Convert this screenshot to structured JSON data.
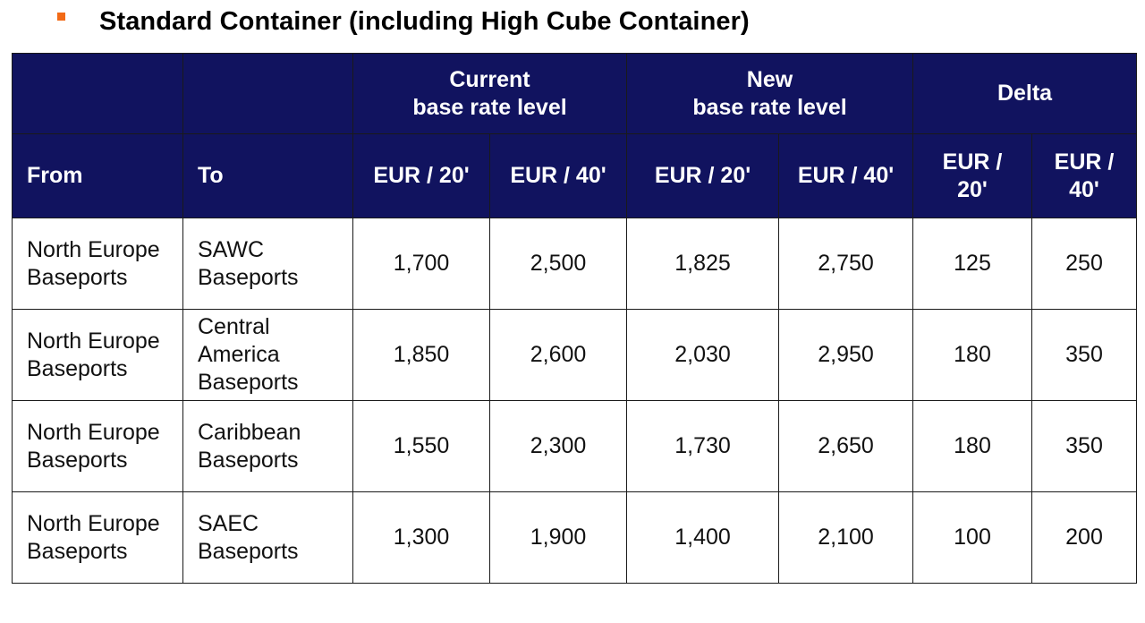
{
  "heading": {
    "title": "Standard Container (including High Cube Container)"
  },
  "colors": {
    "header_bg": "#11135f",
    "header_text": "#ffffff",
    "bullet": "#f26a16"
  },
  "table": {
    "group_headers": {
      "current": [
        "Current",
        "base rate level"
      ],
      "new": [
        "New",
        "base rate level"
      ],
      "delta": "Delta"
    },
    "columns": {
      "from": "From",
      "to": "To",
      "cur_20": "EUR / 20'",
      "cur_40": "EUR / 40'",
      "new_20": "EUR / 20'",
      "new_40": "EUR / 40'",
      "delta_20": [
        "EUR /",
        "20'"
      ],
      "delta_40": [
        "EUR /",
        "40'"
      ]
    },
    "rows": [
      {
        "from": [
          "North Europe",
          "Baseports"
        ],
        "to": [
          "SAWC",
          "Baseports"
        ],
        "cur_20": "1,700",
        "cur_40": "2,500",
        "new_20": "1,825",
        "new_40": "2,750",
        "delta_20": "125",
        "delta_40": "250"
      },
      {
        "from": [
          "North Europe",
          "Baseports"
        ],
        "to": [
          "Central",
          "America",
          "Baseports"
        ],
        "cur_20": "1,850",
        "cur_40": "2,600",
        "new_20": "2,030",
        "new_40": "2,950",
        "delta_20": "180",
        "delta_40": "350"
      },
      {
        "from": [
          "North Europe",
          "Baseports"
        ],
        "to": [
          "Caribbean",
          "Baseports"
        ],
        "cur_20": "1,550",
        "cur_40": "2,300",
        "new_20": "1,730",
        "new_40": "2,650",
        "delta_20": "180",
        "delta_40": "350"
      },
      {
        "from": [
          "North Europe",
          "Baseports"
        ],
        "to": [
          "SAEC",
          "Baseports"
        ],
        "cur_20": "1,300",
        "cur_40": "1,900",
        "new_20": "1,400",
        "new_40": "2,100",
        "delta_20": "100",
        "delta_40": "200"
      }
    ]
  }
}
